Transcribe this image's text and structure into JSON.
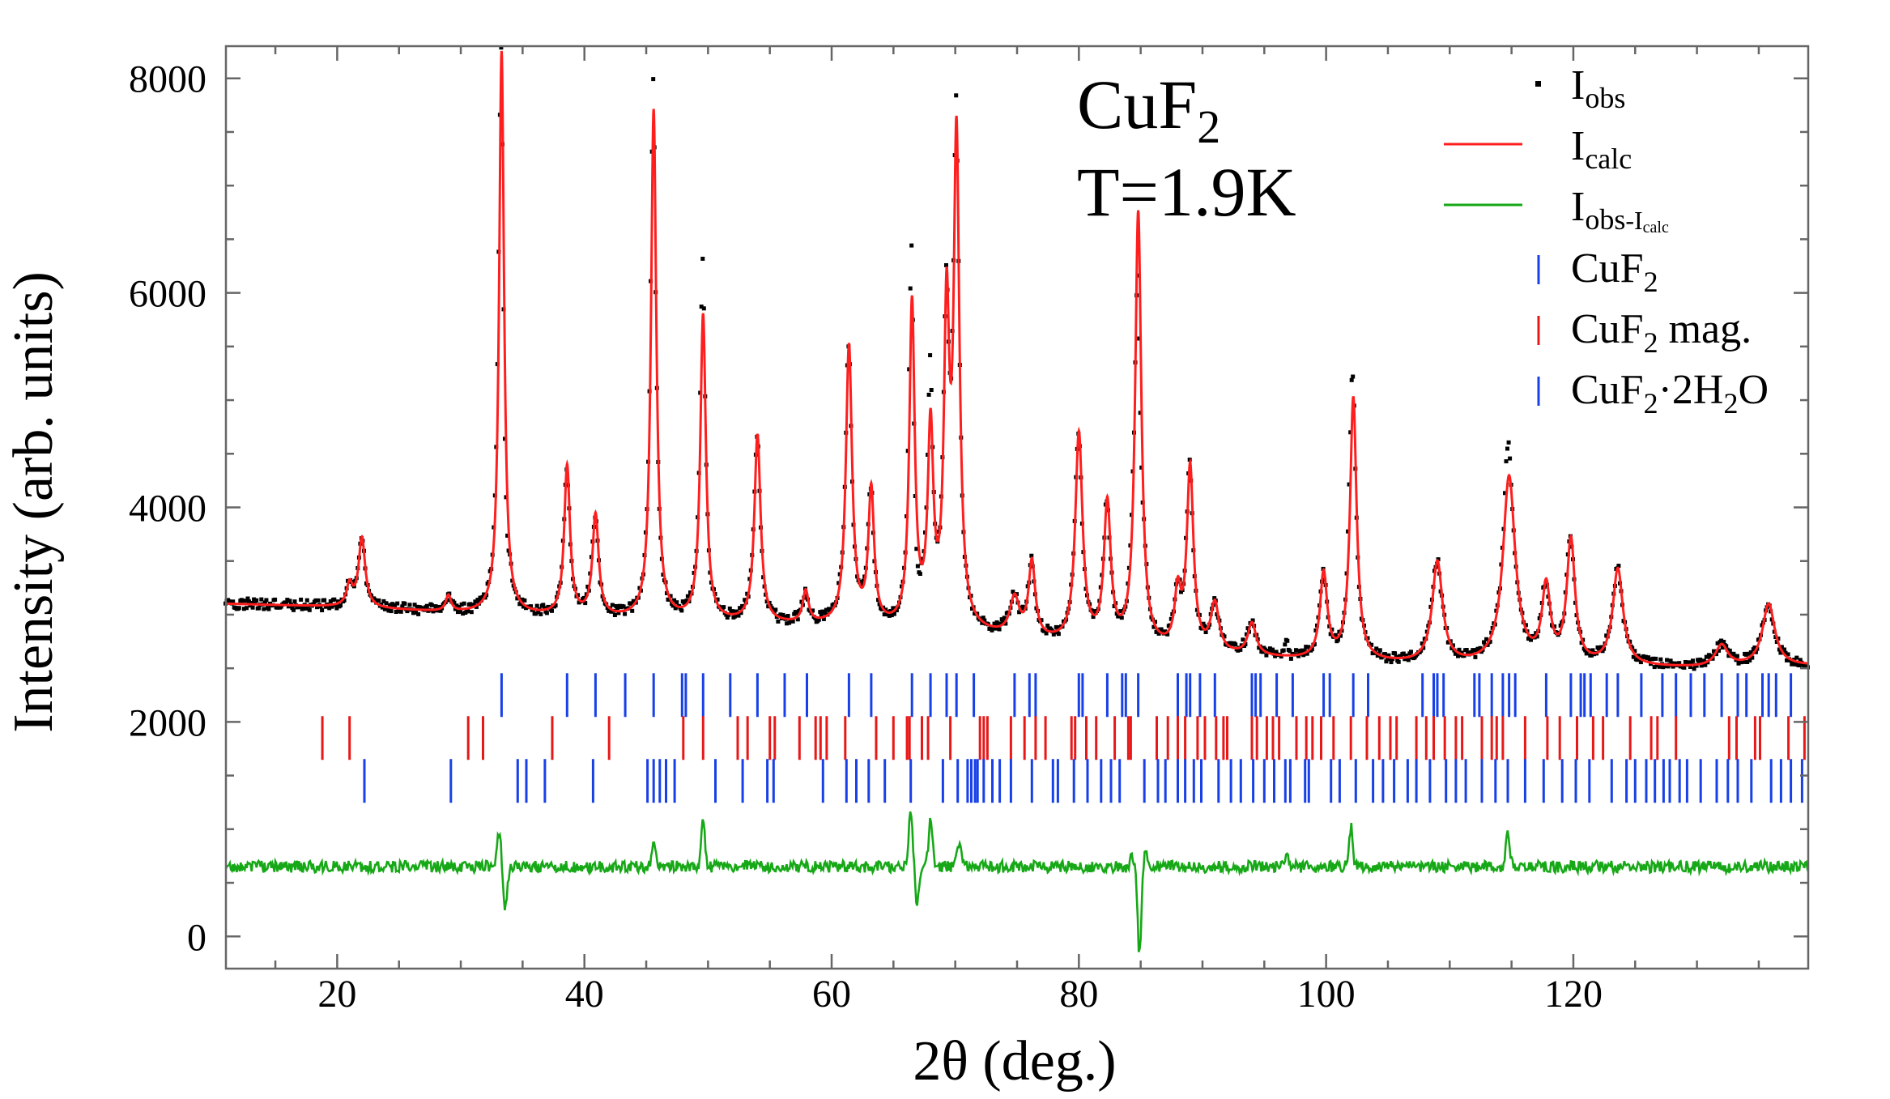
{
  "chart_data": {
    "type": "line",
    "xlabel": "2θ (deg.)",
    "ylabel": "Intensity (arb. units)",
    "xlim": [
      11,
      139
    ],
    "ylim": [
      -300,
      8300
    ],
    "xticks": [
      20,
      40,
      60,
      80,
      100,
      120
    ],
    "yticks": [
      0,
      2000,
      4000,
      6000,
      8000
    ],
    "grid": false,
    "legend_position": "top-right",
    "annotations": {
      "compound": {
        "base": "CuF",
        "sub": "2"
      },
      "temperature": "T=1.9K"
    },
    "background": {
      "x": [
        11,
        20,
        30,
        40,
        50,
        60,
        70,
        80,
        90,
        100,
        110,
        120,
        130,
        139
      ],
      "y": [
        3100,
        3070,
        3010,
        2960,
        2920,
        2880,
        2820,
        2700,
        2620,
        2560,
        2520,
        2510,
        2500,
        2520
      ]
    },
    "peaks": [
      {
        "x": 21.0,
        "height": 200,
        "width": 0.28
      },
      {
        "x": 22.0,
        "height": 650,
        "width": 0.32
      },
      {
        "x": 29.0,
        "height": 150,
        "width": 0.25
      },
      {
        "x": 33.3,
        "height": 5250,
        "width": 0.24
      },
      {
        "x": 38.6,
        "height": 1400,
        "width": 0.28
      },
      {
        "x": 40.9,
        "height": 950,
        "width": 0.3
      },
      {
        "x": 45.6,
        "height": 4750,
        "width": 0.26
      },
      {
        "x": 49.6,
        "height": 2850,
        "width": 0.27
      },
      {
        "x": 54.0,
        "height": 1750,
        "width": 0.3
      },
      {
        "x": 57.9,
        "height": 300,
        "width": 0.28
      },
      {
        "x": 61.4,
        "height": 2600,
        "width": 0.3
      },
      {
        "x": 63.2,
        "height": 1250,
        "width": 0.28
      },
      {
        "x": 66.5,
        "height": 3000,
        "width": 0.26
      },
      {
        "x": 68.0,
        "height": 1800,
        "width": 0.27
      },
      {
        "x": 69.3,
        "height": 2800,
        "width": 0.26
      },
      {
        "x": 70.1,
        "height": 4500,
        "width": 0.28
      },
      {
        "x": 74.8,
        "height": 350,
        "width": 0.45
      },
      {
        "x": 76.2,
        "height": 700,
        "width": 0.32
      },
      {
        "x": 80.0,
        "height": 1950,
        "width": 0.35
      },
      {
        "x": 82.3,
        "height": 1300,
        "width": 0.33
      },
      {
        "x": 84.8,
        "height": 4050,
        "width": 0.3
      },
      {
        "x": 88.0,
        "height": 500,
        "width": 0.3
      },
      {
        "x": 89.0,
        "height": 1700,
        "width": 0.32
      },
      {
        "x": 91.0,
        "height": 450,
        "width": 0.4
      },
      {
        "x": 94.0,
        "height": 300,
        "width": 0.4
      },
      {
        "x": 99.8,
        "height": 800,
        "width": 0.35
      },
      {
        "x": 102.2,
        "height": 2450,
        "width": 0.32
      },
      {
        "x": 109.0,
        "height": 950,
        "width": 0.5
      },
      {
        "x": 114.8,
        "height": 1750,
        "width": 0.6
      },
      {
        "x": 117.8,
        "height": 700,
        "width": 0.4
      },
      {
        "x": 119.8,
        "height": 1150,
        "width": 0.4
      },
      {
        "x": 123.6,
        "height": 900,
        "width": 0.5
      },
      {
        "x": 132.0,
        "height": 200,
        "width": 0.6
      },
      {
        "x": 135.8,
        "height": 580,
        "width": 0.6
      }
    ],
    "difference_offset": 650,
    "difference_spikes": [
      {
        "x": 33.1,
        "value": 330
      },
      {
        "x": 33.6,
        "value": -380
      },
      {
        "x": 45.6,
        "value": 230
      },
      {
        "x": 49.6,
        "value": 450
      },
      {
        "x": 66.4,
        "value": 520
      },
      {
        "x": 66.9,
        "value": -320
      },
      {
        "x": 68.0,
        "value": 430
      },
      {
        "x": 70.3,
        "value": 230
      },
      {
        "x": 84.3,
        "value": 120
      },
      {
        "x": 84.9,
        "value": -800
      },
      {
        "x": 85.4,
        "value": 150
      },
      {
        "x": 102.0,
        "value": 370
      },
      {
        "x": 114.7,
        "value": 300
      },
      {
        "x": 96.8,
        "value": 120
      }
    ],
    "series": [
      {
        "name": "I<sub>obs</sub>",
        "label": {
          "base": "I",
          "sub": "obs"
        },
        "style": "dots",
        "color": "#000000"
      },
      {
        "name": "I<sub>calc</sub>",
        "label": {
          "base": "I",
          "sub": "calc"
        },
        "style": "line",
        "color": "#ff1e1e"
      },
      {
        "name": "I<sub>obs</sub>-I<sub>calc</sub>",
        "label": {
          "base": "I",
          "sub": "obs",
          "mid": "-I",
          "sub2": "calc"
        },
        "style": "line",
        "color": "#17a817"
      }
    ],
    "bragg_phases": [
      {
        "name": "CuF2",
        "label": {
          "parts": [
            [
              "CuF",
              ""
            ],
            [
              "2",
              "sub"
            ]
          ]
        },
        "color": "#1840e8",
        "row_y": 2250,
        "positions": [
          33.3,
          38.6,
          40.9,
          43.3,
          45.6,
          47.9,
          48.2,
          49.6,
          51.8,
          54.0,
          56.2,
          58.0,
          61.4,
          63.2,
          66.5,
          68.0,
          69.3,
          70.1,
          71.5,
          74.8,
          76.0,
          76.5,
          80.0,
          80.3,
          82.3,
          83.5,
          83.8,
          84.8,
          88.0,
          88.7,
          89.0,
          89.8,
          91.0,
          94.0,
          94.3,
          94.7,
          96.0,
          97.3,
          99.8,
          100.3,
          102.2,
          103.4,
          107.8,
          108.7,
          109.0,
          109.5,
          112.0,
          112.4,
          113.4,
          114.3,
          114.8,
          115.3,
          117.8,
          119.8,
          120.6,
          120.9,
          121.4,
          122.7,
          123.6,
          125.5,
          127.2,
          128.3,
          129.5,
          130.6,
          132.0,
          133.3,
          134.0,
          135.3,
          135.8,
          136.4,
          137.6
        ]
      },
      {
        "name": "CuF2 mag.",
        "label": {
          "parts": [
            [
              "CuF",
              ""
            ],
            [
              "2",
              "sub"
            ],
            [
              " mag.",
              ""
            ]
          ]
        },
        "color": "#e81818",
        "row_y": 1850,
        "positions": [
          18.8,
          21.0,
          30.6,
          31.8,
          37.4,
          42.0,
          48.0,
          49.6,
          52.4,
          53.2,
          55.0,
          55.4,
          57.4,
          58.7,
          59.1,
          59.6,
          61.1,
          63.6,
          65.0,
          66.1,
          66.3,
          67.3,
          67.8,
          69.6,
          72.0,
          72.3,
          72.6,
          74.5,
          75.6,
          76.5,
          77.3,
          79.4,
          79.7,
          80.6,
          81.4,
          82.9,
          84.0,
          84.2,
          86.3,
          87.2,
          88.0,
          88.6,
          89.6,
          90.2,
          91.1,
          91.7,
          92.0,
          94.0,
          94.4,
          95.2,
          95.7,
          96.2,
          97.6,
          98.4,
          98.9,
          99.6,
          100.6,
          102.0,
          103.3,
          104.3,
          105.2,
          105.7,
          107.3,
          108.1,
          108.7,
          109.6,
          110.5,
          111.0,
          112.6,
          113.4,
          113.8,
          114.3,
          116.1,
          117.9,
          118.9,
          120.3,
          121.6,
          122.4,
          124.6,
          126.3,
          126.8,
          128.3,
          132.6,
          133.2,
          134.7,
          135.1,
          137.4,
          138.7
        ]
      },
      {
        "name": "CuF2·2H2O",
        "label": {
          "parts": [
            [
              "CuF",
              ""
            ],
            [
              "2",
              "sub"
            ],
            [
              "·2H",
              ""
            ],
            [
              "2",
              "sub"
            ],
            [
              "O",
              ""
            ]
          ]
        },
        "color": "#1840e8",
        "row_y": 1450,
        "positions": [
          22.2,
          29.2,
          34.6,
          35.3,
          36.8,
          40.7,
          45.1,
          45.6,
          46.1,
          46.6,
          47.3,
          50.6,
          52.8,
          54.8,
          55.3,
          59.3,
          61.2,
          62.0,
          63.0,
          64.3,
          66.4,
          69.0,
          70.2,
          71.0,
          71.3,
          71.6,
          71.8,
          72.3,
          73.0,
          73.6,
          74.5,
          76.2,
          77.9,
          78.3,
          79.6,
          80.7,
          81.8,
          82.6,
          83.3,
          85.3,
          86.4,
          87.0,
          88.0,
          88.6,
          89.3,
          89.9,
          91.3,
          92.3,
          93.1,
          94.1,
          95.0,
          95.8,
          96.7,
          97.1,
          98.3,
          98.6,
          100.4,
          101.1,
          102.4,
          103.8,
          104.6,
          105.5,
          106.6,
          107.3,
          108.4,
          109.7,
          110.5,
          111.3,
          112.6,
          113.7,
          114.7,
          116.1,
          117.6,
          119.1,
          120.2,
          121.3,
          123.1,
          124.3,
          125.0,
          125.9,
          126.6,
          127.3,
          127.8,
          128.6,
          129.2,
          130.3,
          131.6,
          132.5,
          133.3,
          134.4,
          136.0,
          136.8,
          137.6,
          138.5
        ]
      }
    ]
  }
}
